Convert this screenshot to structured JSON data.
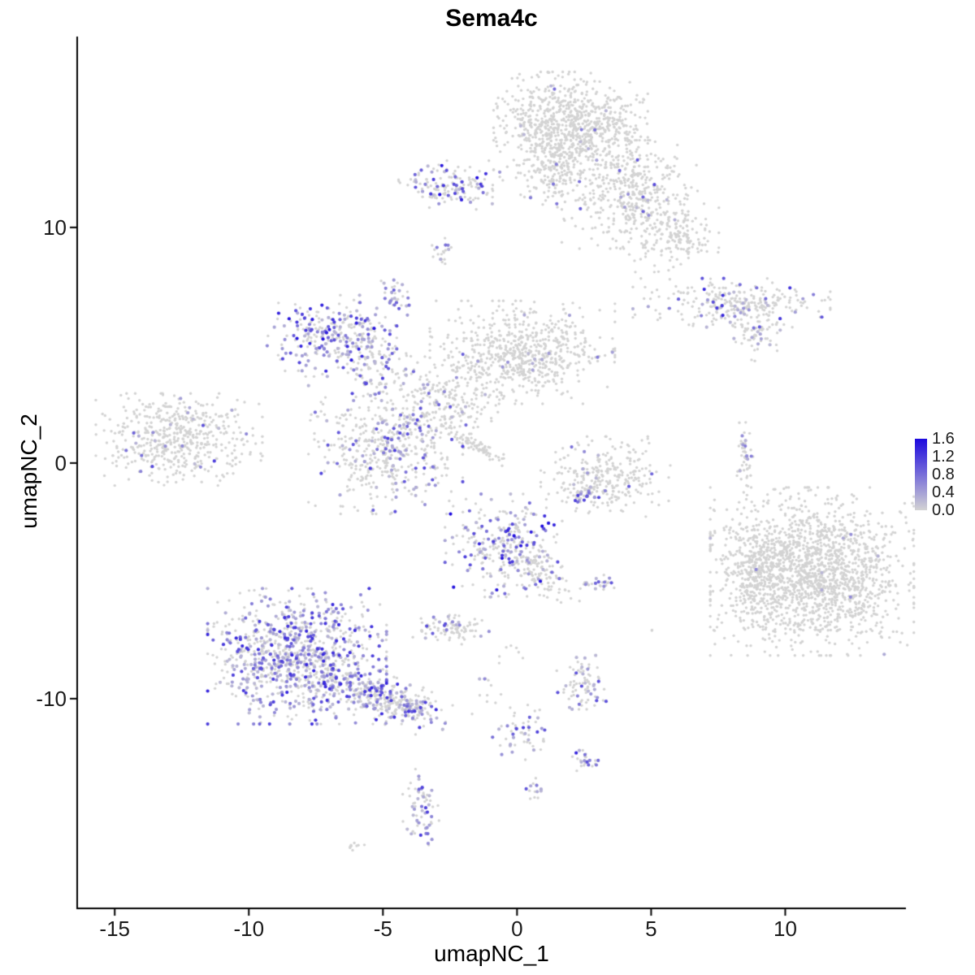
{
  "title": "Sema4c",
  "axes": {
    "x": {
      "label": "umapNC_1",
      "ticks": [
        {
          "value": -15,
          "label": "-15"
        },
        {
          "value": -10,
          "label": "-10"
        },
        {
          "value": -5,
          "label": "-5"
        },
        {
          "value": 0,
          "label": "0"
        },
        {
          "value": 5,
          "label": "5"
        },
        {
          "value": 10,
          "label": "10"
        }
      ]
    },
    "y": {
      "label": "umapNC_2",
      "ticks": [
        {
          "value": 10,
          "label": "10"
        },
        {
          "value": 0,
          "label": "0"
        },
        {
          "value": -10,
          "label": "-10"
        }
      ]
    }
  },
  "legend": {
    "ticks": [
      {
        "value": 1.6,
        "label": "1.6"
      },
      {
        "value": 1.2,
        "label": "1.2"
      },
      {
        "value": 0.8,
        "label": "0.8"
      },
      {
        "value": 0.4,
        "label": "0.4"
      },
      {
        "value": 0.0,
        "label": "0.0"
      }
    ],
    "min": 0.0,
    "max": 1.6,
    "color_low": "#D3D3D3",
    "color_high": "#1C09DE"
  },
  "chart_data": {
    "type": "scatter",
    "title": "Sema4c",
    "xlabel": "umapNC_1",
    "ylabel": "umapNC_2",
    "xlim": [
      -16.4,
      14.5
    ],
    "ylim": [
      -18.9,
      18.1
    ],
    "grid": false,
    "legend_position": "right",
    "color_scale": {
      "min": 0.0,
      "max": 1.6,
      "low": "#D3D3D3",
      "high": "#1C09DE"
    },
    "point_color_meaning": "Sema4c expression level per cell on UMAP embedding",
    "clusters": [
      {
        "name": "top-center",
        "cx": 2.0,
        "cy": 14.3,
        "rx": 1.25,
        "ry": 1.0,
        "n": 850,
        "frac": 0.015,
        "max": 1.0
      },
      {
        "name": "top-center-neck",
        "cx": 1.4,
        "cy": 12.2,
        "rx": 0.55,
        "ry": 0.8,
        "n": 140,
        "frac": 0.05,
        "max": 1.2
      },
      {
        "name": "top-right-arm",
        "cx": 4.2,
        "cy": 11.4,
        "rx": 1.1,
        "ry": 1.0,
        "n": 420,
        "frac": 0.035,
        "max": 1.2
      },
      {
        "name": "top-right-lower",
        "cx": 5.8,
        "cy": 9.6,
        "rx": 0.75,
        "ry": 0.65,
        "n": 170,
        "frac": 0.02,
        "max": 0.8
      },
      {
        "name": "top-left-small",
        "cx": -2.6,
        "cy": 11.8,
        "rx": 0.85,
        "ry": 0.45,
        "n": 150,
        "frac": 0.3,
        "max": 1.6
      },
      {
        "name": "mini-top",
        "cx": -2.8,
        "cy": 8.9,
        "rx": 0.2,
        "ry": 0.28,
        "n": 20,
        "frac": 0.3,
        "max": 0.8
      },
      {
        "name": "mini-upper-left",
        "cx": -4.6,
        "cy": 7.1,
        "rx": 0.25,
        "ry": 0.38,
        "n": 35,
        "frac": 0.5,
        "max": 1.0
      },
      {
        "name": "left-mid-purple",
        "cx": -6.9,
        "cy": 5.4,
        "rx": 1.05,
        "ry": 0.75,
        "n": 280,
        "frac": 0.45,
        "max": 1.6
      },
      {
        "name": "left-mid-tail",
        "cx": -5.4,
        "cy": 4.1,
        "rx": 0.55,
        "ry": 0.85,
        "n": 100,
        "frac": 0.35,
        "max": 1.2
      },
      {
        "name": "center-top",
        "cx": 0.2,
        "cy": 4.7,
        "rx": 1.5,
        "ry": 0.95,
        "n": 650,
        "frac": 0.02,
        "max": 1.0
      },
      {
        "name": "center-neck",
        "cx": -2.7,
        "cy": 2.6,
        "rx": 1.1,
        "ry": 0.85,
        "n": 230,
        "frac": 0.1,
        "max": 1.0
      },
      {
        "name": "mid-left",
        "cx": -4.9,
        "cy": 0.6,
        "rx": 1.25,
        "ry": 1.2,
        "n": 480,
        "frac": 0.18,
        "max": 1.2
      },
      {
        "name": "far-left",
        "cx": -12.6,
        "cy": 1.0,
        "rx": 1.35,
        "ry": 0.85,
        "n": 520,
        "frac": 0.04,
        "max": 1.2
      },
      {
        "name": "diag-streak",
        "cx": -1.6,
        "cy": 0.8,
        "rx": 0.6,
        "ry": 0.12,
        "angle": -35,
        "n": 70,
        "frac": 0.05,
        "max": 0.6
      },
      {
        "name": "right-crescent",
        "cx": 3.3,
        "cy": -0.6,
        "rx": 1.05,
        "ry": 0.75,
        "n": 280,
        "frac": 0.05,
        "max": 1.0
      },
      {
        "name": "crescent-tip",
        "cx": 2.4,
        "cy": -1.3,
        "rx": 0.3,
        "ry": 0.2,
        "n": 30,
        "frac": 0.5,
        "max": 1.2
      },
      {
        "name": "right-streak",
        "cx": 8.5,
        "cy": 0.3,
        "rx": 0.13,
        "ry": 0.8,
        "n": 50,
        "frac": 0.1,
        "max": 0.8
      },
      {
        "name": "right-horizontal",
        "cx": 8.0,
        "cy": 6.8,
        "rx": 1.6,
        "ry": 0.45,
        "n": 260,
        "frac": 0.15,
        "max": 1.4
      },
      {
        "name": "right-horizontal-tail",
        "cx": 8.8,
        "cy": 5.8,
        "rx": 0.5,
        "ry": 0.45,
        "n": 80,
        "frac": 0.1,
        "max": 1.0
      },
      {
        "name": "big-right",
        "cx": 11.0,
        "cy": -4.6,
        "rx": 1.65,
        "ry": 1.55,
        "n": 1700,
        "frac": 0.004,
        "max": 0.6
      },
      {
        "name": "big-right-edge",
        "cx": 8.9,
        "cy": -4.8,
        "rx": 0.55,
        "ry": 1.15,
        "n": 190,
        "frac": 0.01,
        "max": 0.6
      },
      {
        "name": "center-lower",
        "cx": -0.5,
        "cy": -3.5,
        "rx": 0.95,
        "ry": 0.95,
        "n": 300,
        "frac": 0.35,
        "max": 1.6
      },
      {
        "name": "center-lower-arm",
        "cx": 0.9,
        "cy": -4.9,
        "rx": 0.75,
        "ry": 0.4,
        "angle": -30,
        "n": 90,
        "frac": 0.15,
        "max": 1.0
      },
      {
        "name": "mini-right-dots",
        "cx": 3.0,
        "cy": -5.1,
        "rx": 0.35,
        "ry": 0.15,
        "n": 25,
        "frac": 0.5,
        "max": 1.2
      },
      {
        "name": "small-ellipse",
        "cx": -2.5,
        "cy": -7.0,
        "rx": 0.65,
        "ry": 0.3,
        "n": 90,
        "frac": 0.25,
        "max": 1.2
      },
      {
        "name": "bottom-left-big",
        "cx": -8.2,
        "cy": -8.2,
        "rx": 1.45,
        "ry": 1.25,
        "n": 950,
        "frac": 0.45,
        "max": 1.4
      },
      {
        "name": "bottom-left-trail",
        "cx": -5.2,
        "cy": -9.9,
        "rx": 1.2,
        "ry": 0.45,
        "angle": -20,
        "n": 280,
        "frac": 0.4,
        "max": 1.4
      },
      {
        "name": "trail-end",
        "cx": -3.9,
        "cy": -10.4,
        "rx": 0.4,
        "ry": 0.25,
        "n": 60,
        "frac": 0.45,
        "max": 1.4
      },
      {
        "name": "small-bottom-mid",
        "cx": 2.4,
        "cy": -9.3,
        "rx": 0.4,
        "ry": 0.5,
        "n": 80,
        "frac": 0.25,
        "max": 1.2
      },
      {
        "name": "sparse-mid",
        "cx": -1.1,
        "cy": -9.5,
        "rx": 0.25,
        "ry": 0.5,
        "n": 12,
        "frac": 0.2,
        "max": 0.8
      },
      {
        "name": "mid-bottom-trail",
        "cx": 0.2,
        "cy": -11.5,
        "rx": 0.5,
        "ry": 0.5,
        "angle": 40,
        "n": 55,
        "frac": 0.3,
        "max": 1.2
      },
      {
        "name": "dark-dot-cluster",
        "cx": 2.45,
        "cy": -12.6,
        "rx": 0.25,
        "ry": 0.2,
        "n": 28,
        "frac": 0.5,
        "max": 1.6
      },
      {
        "name": "bottom-small",
        "cx": -3.6,
        "cy": -14.6,
        "rx": 0.3,
        "ry": 0.7,
        "n": 65,
        "frac": 0.5,
        "max": 1.2
      },
      {
        "name": "bottom-tiny",
        "cx": 0.55,
        "cy": -13.9,
        "rx": 0.15,
        "ry": 0.3,
        "n": 14,
        "frac": 0.5,
        "max": 1.0
      },
      {
        "name": "speck-bottom-left",
        "cx": -5.9,
        "cy": -16.2,
        "rx": 0.3,
        "ry": 0.1,
        "angle": 20,
        "n": 9,
        "frac": 0.05,
        "max": 0.4
      },
      {
        "name": "single-a",
        "cx": 5.0,
        "cy": -7.1,
        "rx": 0.06,
        "ry": 0.06,
        "n": 2,
        "frac": 0,
        "max": 0
      },
      {
        "name": "single-b",
        "cx": 8.3,
        "cy": -3.2,
        "rx": 0.06,
        "ry": 0.06,
        "n": 2,
        "frac": 0,
        "max": 0
      },
      {
        "name": "single-c",
        "cx": 4.9,
        "cy": -2.4,
        "rx": 0.06,
        "ry": 0.06,
        "n": 1,
        "frac": 0,
        "max": 0
      },
      {
        "name": "single-d",
        "cx": -0.3,
        "cy": -7.9,
        "rx": 0.3,
        "ry": 0.25,
        "n": 6,
        "frac": 0.2,
        "max": 0.8
      },
      {
        "name": "single-e",
        "cx": 8.9,
        "cy": 4.3,
        "rx": 0.1,
        "ry": 0.1,
        "n": 2,
        "frac": 0,
        "max": 0
      }
    ]
  }
}
